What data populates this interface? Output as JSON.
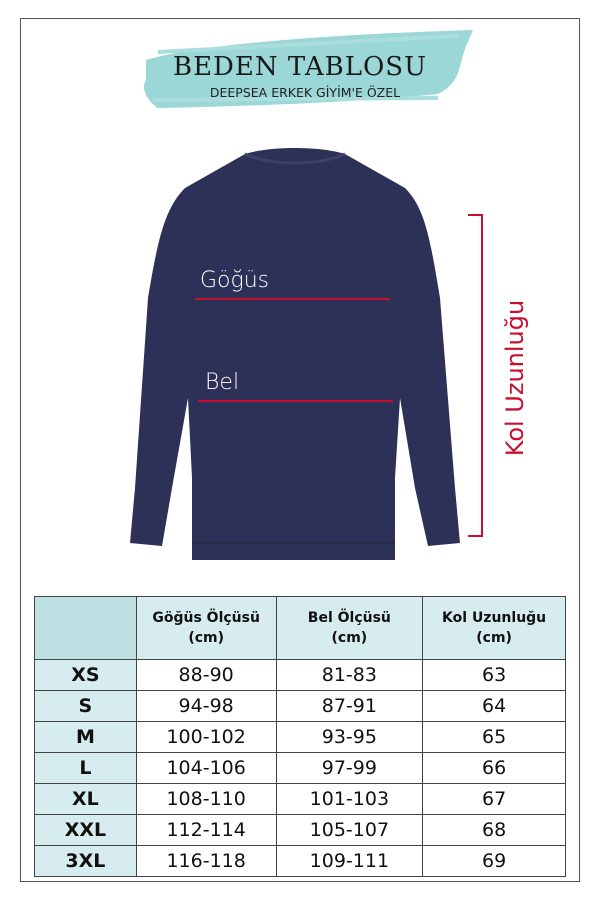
{
  "header": {
    "title": "BEDEN TABLOSU",
    "subtitle": "DEEPSEA ERKEK GİYİM'E ÖZEL",
    "banner_color": "#8fd3d1"
  },
  "diagram": {
    "chest_label": "Göğüs",
    "waist_label": "Bel",
    "sleeve_label": "Kol Uzunluğu",
    "garment_color": "#2e3157",
    "measure_color": "#c8102e"
  },
  "table": {
    "headers": [
      {
        "line1": "",
        "line2": ""
      },
      {
        "line1": "Göğüs Ölçüsü",
        "line2": "(cm)"
      },
      {
        "line1": "Bel Ölçüsü",
        "line2": "(cm)"
      },
      {
        "line1": "Kol Uzunluğu",
        "line2": "(cm)"
      }
    ],
    "rows": [
      [
        "XS",
        "88-90",
        "81-83",
        "63"
      ],
      [
        "S",
        "94-98",
        "87-91",
        "64"
      ],
      [
        "M",
        "100-102",
        "93-95",
        "65"
      ],
      [
        "L",
        "104-106",
        "97-99",
        "66"
      ],
      [
        "XL",
        "108-110",
        "101-103",
        "67"
      ],
      [
        "XXL",
        "112-114",
        "105-107",
        "68"
      ],
      [
        "3XL",
        "116-118",
        "109-111",
        "69"
      ]
    ]
  }
}
